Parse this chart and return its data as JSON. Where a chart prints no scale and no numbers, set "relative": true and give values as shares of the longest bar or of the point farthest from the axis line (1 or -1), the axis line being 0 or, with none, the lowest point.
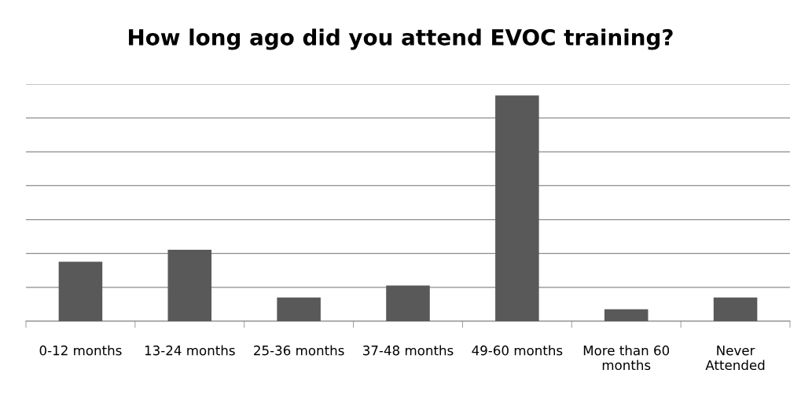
{
  "chart_data": {
    "type": "bar",
    "title": "How long ago did you attend EVOC training?",
    "categories": [
      "0-12 months",
      "13-24 months",
      "25-36 months",
      "37-48 months",
      "49-60 months",
      "More than 60 months",
      "Never Attended"
    ],
    "values": [
      0.263,
      0.316,
      0.105,
      0.158,
      1,
      0.053,
      0.105
    ],
    "color": "#595959",
    "relative": true,
    "grid": "y",
    "legend": false
  }
}
